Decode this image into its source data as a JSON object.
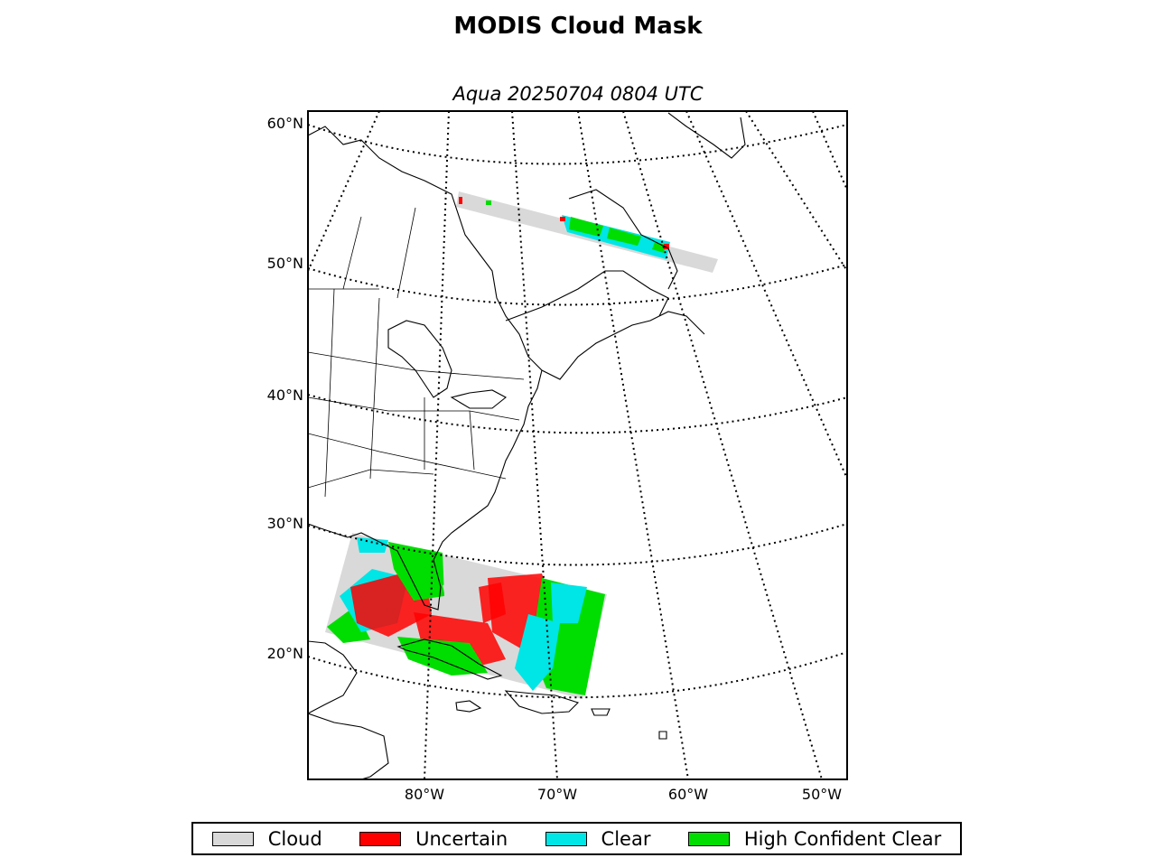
{
  "title": "MODIS Cloud Mask",
  "subtitle": "Aqua 20250704 0804 UTC",
  "map": {
    "projection": "conic",
    "lat_labels": [
      "60°N",
      "50°N",
      "40°N",
      "30°N",
      "20°N"
    ],
    "lon_labels": [
      "80°W",
      "70°W",
      "60°W",
      "50°W"
    ],
    "gridline_style": "dotted"
  },
  "legend": [
    {
      "label": "Cloud",
      "color": "#d9d9d9"
    },
    {
      "label": "Uncertain",
      "color": "#ff0000"
    },
    {
      "label": "Clear",
      "color": "#00e5e5"
    },
    {
      "label": "High Confident Clear",
      "color": "#00dd00"
    }
  ]
}
